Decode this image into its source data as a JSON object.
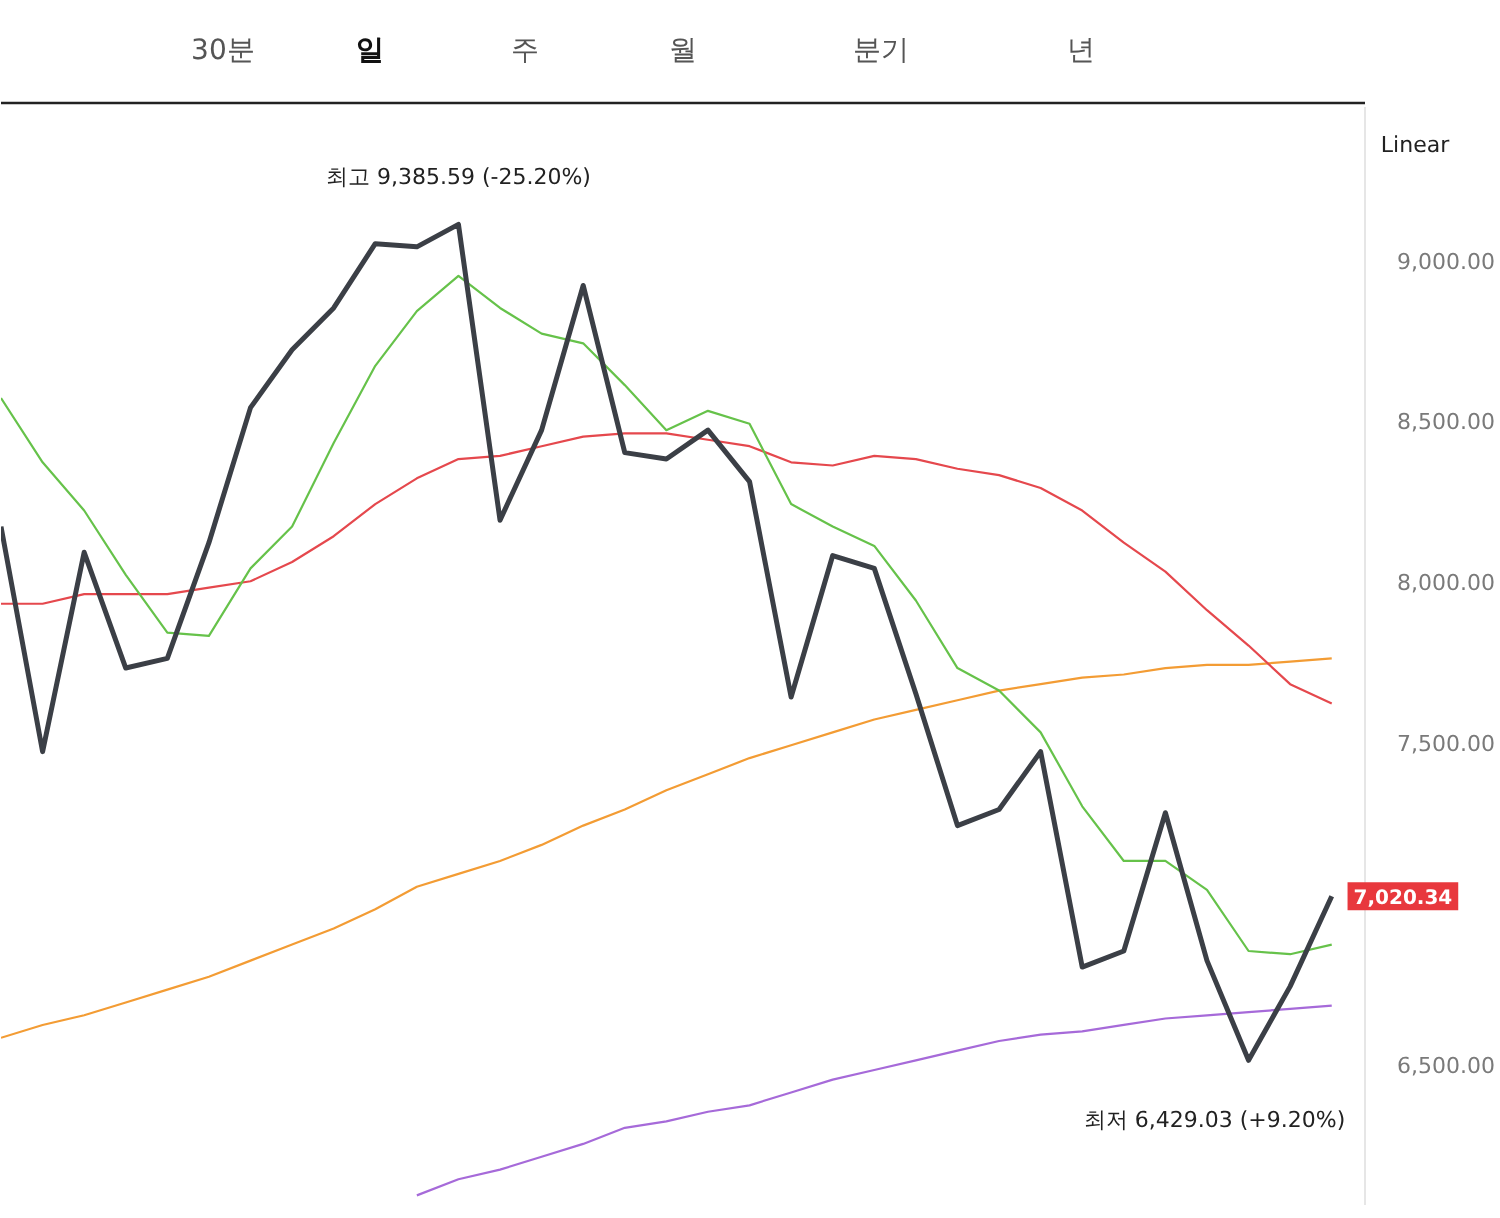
{
  "chart_data": {
    "type": "line",
    "categories": [
      null,
      null,
      null,
      null,
      null,
      null,
      null,
      null,
      null,
      null,
      null,
      null,
      null,
      null,
      null,
      null,
      null,
      null,
      null,
      null,
      null,
      null,
      null,
      null,
      null,
      null,
      null,
      null,
      null,
      null,
      null,
      null,
      null
    ],
    "series": [
      {
        "color": "#3b3f46",
        "values": [
          8170,
          7470,
          8090,
          7730,
          7760,
          8120,
          8540,
          8720,
          8850,
          9050,
          9040,
          9110,
          8190,
          8470,
          8920,
          8400,
          8380,
          8470,
          8310,
          7640,
          8080,
          8040,
          7650,
          7240,
          7290,
          7470,
          6800,
          6850,
          7280,
          6820,
          6510,
          6740,
          7020.34
        ],
        "value_labels": [
          null,
          null,
          null,
          null,
          null,
          null,
          null,
          null,
          null,
          null,
          null,
          null,
          null,
          null,
          null,
          null,
          null,
          null,
          null,
          null,
          null,
          null,
          null,
          null,
          null,
          null,
          null,
          null,
          null,
          null,
          null,
          null,
          "7,020.34"
        ]
      },
      {
        "color": "#66c24a",
        "values": [
          8570,
          8370,
          8220,
          8020,
          7840,
          7830,
          8040,
          8170,
          8430,
          8670,
          8840,
          8950,
          8850,
          8770,
          8740,
          8610,
          8470,
          8530,
          8490,
          8240,
          8170,
          8110,
          7940,
          7730,
          7660,
          7530,
          7300,
          7130,
          7130,
          7040,
          6850,
          6840,
          6870
        ]
      },
      {
        "color": "#e5484d",
        "values": [
          7930,
          7930,
          7960,
          7960,
          7960,
          7980,
          8000,
          8060,
          8140,
          8240,
          8320,
          8380,
          8390,
          8420,
          8450,
          8460,
          8460,
          8440,
          8420,
          8370,
          8360,
          8390,
          8380,
          8350,
          8330,
          8290,
          8220,
          8120,
          8030,
          7910,
          7800,
          7680,
          7620
        ]
      },
      {
        "color": "#f39c34",
        "values": [
          6580,
          6620,
          6650,
          6690,
          6730,
          6770,
          6820,
          6870,
          6920,
          6980,
          7050,
          7090,
          7130,
          7180,
          7240,
          7290,
          7350,
          7400,
          7450,
          7490,
          7530,
          7570,
          7600,
          7630,
          7660,
          7680,
          7700,
          7710,
          7730,
          7740,
          7740,
          7750,
          7760
        ]
      },
      {
        "color": "#a66ad9",
        "values": [
          null,
          null,
          null,
          null,
          null,
          null,
          null,
          null,
          null,
          null,
          6090,
          6140,
          6170,
          6210,
          6250,
          6300,
          6320,
          6350,
          6370,
          6410,
          6450,
          6480,
          6510,
          6540,
          6570,
          6590,
          6600,
          6620,
          6640,
          6650,
          6660,
          6670,
          6680
        ]
      }
    ],
    "ylim": [
      6060,
      9475
    ],
    "yticks": [
      {
        "value": 6500,
        "label": "6,500.00"
      },
      {
        "value": 7500,
        "label": "7,500.00"
      },
      {
        "value": 8000,
        "label": "8,000.00"
      },
      {
        "value": 8500,
        "label": "8,500.00"
      },
      {
        "value": 9000,
        "label": "9,000.00"
      }
    ],
    "tick_labels": "y",
    "annotations": [
      "최고 9,385.59 (-25.20%)",
      "최저 6,429.03 (+9.20%)",
      "Linear",
      "30분",
      "일",
      "주",
      "월",
      "분기",
      "년"
    ]
  }
}
